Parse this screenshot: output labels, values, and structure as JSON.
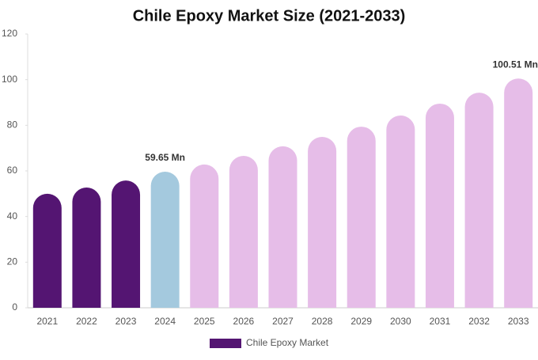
{
  "chart_data": {
    "type": "bar",
    "title": "Chile Epoxy Market Size (2021-2033)",
    "categories": [
      "2021",
      "2022",
      "2023",
      "2024",
      "2025",
      "2026",
      "2027",
      "2028",
      "2029",
      "2030",
      "2031",
      "2032",
      "2033"
    ],
    "series": [
      {
        "name": "Chile Epoxy Market",
        "color": "#541572",
        "colors": [
          "#541572",
          "#541572",
          "#541572",
          "#a4c9de",
          "#e6bde8",
          "#e6bde8",
          "#e6bde8",
          "#e6bde8",
          "#e6bde8",
          "#e6bde8",
          "#e6bde8",
          "#e6bde8",
          "#e6bde8"
        ],
        "values": [
          50,
          52.7,
          55.8,
          59.65,
          62.8,
          66.6,
          70.8,
          74.9,
          79.4,
          84.3,
          89.5,
          94.3,
          100.51
        ],
        "value_labels": [
          null,
          null,
          null,
          "59.65 Mn",
          null,
          null,
          null,
          null,
          null,
          null,
          null,
          null,
          "100.51 Mn"
        ]
      }
    ],
    "ylim": [
      0,
      120
    ],
    "yticks": [
      0,
      20,
      40,
      60,
      80,
      100,
      120
    ],
    "grid": false
  }
}
